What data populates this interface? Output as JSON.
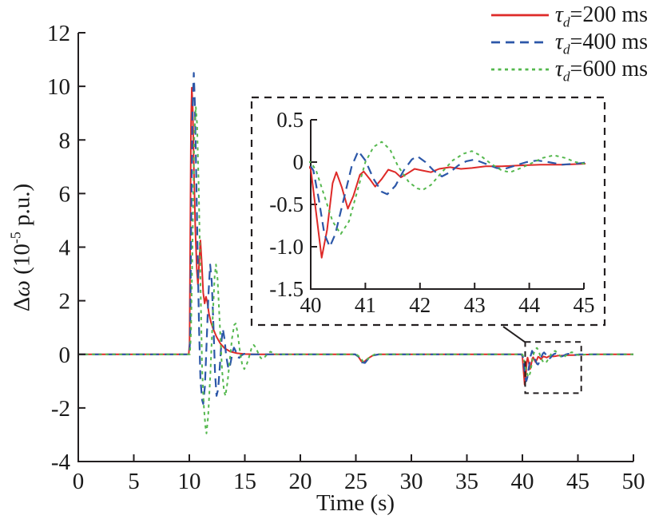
{
  "figure": {
    "background": "#ffffff"
  },
  "axis": {
    "xlabel": "Time (s)",
    "ylabel": {
      "delta": "Δ",
      "omega": "ω",
      "mid": " (10",
      "sup": "-5",
      "post": " p.u.)"
    }
  },
  "legend": {
    "items": [
      {
        "tau": "τ",
        "sub": "d",
        "rest": "=200 ms"
      },
      {
        "tau": "τ",
        "sub": "d",
        "rest": "=400 ms"
      },
      {
        "tau": "τ",
        "sub": "d",
        "rest": "=600 ms"
      }
    ]
  },
  "chart_data": {
    "type": "line",
    "title": "",
    "xlabel": "Time (s)",
    "ylabel": "Δω (10^-5 p.u.)",
    "grid": false,
    "legend_position": "top-right",
    "main": {
      "xlim": [
        0,
        50
      ],
      "ylim": [
        -4,
        12
      ],
      "xticks": [
        [
          0,
          "0"
        ],
        [
          5,
          "5"
        ],
        [
          10,
          "10"
        ],
        [
          15,
          "15"
        ],
        [
          20,
          "20"
        ],
        [
          25,
          "25"
        ],
        [
          30,
          "30"
        ],
        [
          35,
          "35"
        ],
        [
          40,
          "40"
        ],
        [
          45,
          "45"
        ],
        [
          50,
          "50"
        ]
      ],
      "yticks": [
        [
          12,
          "12"
        ],
        [
          10,
          "10"
        ],
        [
          8,
          "8"
        ],
        [
          6,
          "6"
        ],
        [
          4,
          "4"
        ],
        [
          2,
          "2"
        ],
        [
          0,
          "0"
        ],
        [
          -2,
          "-2"
        ],
        [
          -4,
          "-4"
        ]
      ]
    },
    "inset": {
      "xlim": [
        40,
        45
      ],
      "ylim": [
        -1.5,
        0.5
      ],
      "xticks": [
        [
          40,
          "40"
        ],
        [
          41,
          "41"
        ],
        [
          42,
          "42"
        ],
        [
          43,
          "43"
        ],
        [
          44,
          "44"
        ],
        [
          45,
          "45"
        ]
      ],
      "yticks": [
        [
          0.5,
          "0.5"
        ],
        [
          0,
          "0"
        ],
        [
          -0.5,
          "-0.5"
        ],
        [
          -1,
          "-1.0"
        ],
        [
          -1.5,
          "-1.5"
        ]
      ]
    },
    "zoom_region": {
      "t0": 40.25,
      "t1": 45.3,
      "v0": -1.45,
      "v1": 0.46
    },
    "series": [
      {
        "name": "τd=200 ms",
        "color": "#de2a28",
        "dash": "solid",
        "width": 2,
        "points": [
          [
            0,
            0
          ],
          [
            9.95,
            0
          ],
          [
            10.02,
            0.4
          ],
          [
            10.08,
            4.0
          ],
          [
            10.15,
            8.5
          ],
          [
            10.22,
            9.95
          ],
          [
            10.3,
            9.3
          ],
          [
            10.42,
            6.8
          ],
          [
            10.55,
            4.6
          ],
          [
            10.68,
            3.1
          ],
          [
            10.78,
            2.6
          ],
          [
            10.9,
            3.5
          ],
          [
            11.0,
            4.25
          ],
          [
            11.12,
            3.4
          ],
          [
            11.25,
            2.3
          ],
          [
            11.38,
            1.9
          ],
          [
            11.5,
            2.15
          ],
          [
            11.62,
            1.95
          ],
          [
            11.78,
            1.5
          ],
          [
            11.95,
            1.2
          ],
          [
            12.15,
            0.95
          ],
          [
            12.45,
            0.65
          ],
          [
            12.8,
            0.4
          ],
          [
            13.2,
            0.22
          ],
          [
            13.7,
            0.1
          ],
          [
            14.3,
            0.04
          ],
          [
            15.0,
            0.01
          ],
          [
            16.0,
            0
          ],
          [
            24.9,
            0
          ],
          [
            25.2,
            -0.07
          ],
          [
            25.5,
            -0.26
          ],
          [
            25.75,
            -0.28
          ],
          [
            26.1,
            -0.15
          ],
          [
            26.5,
            -0.05
          ],
          [
            27.0,
            0
          ],
          [
            39.9,
            0
          ],
          [
            40.0,
            -0.08
          ],
          [
            40.1,
            -0.6
          ],
          [
            40.2,
            -1.13
          ],
          [
            40.3,
            -0.8
          ],
          [
            40.4,
            -0.25
          ],
          [
            40.47,
            -0.12
          ],
          [
            40.57,
            -0.3
          ],
          [
            40.68,
            -0.55
          ],
          [
            40.78,
            -0.4
          ],
          [
            40.9,
            -0.15
          ],
          [
            40.97,
            -0.11
          ],
          [
            41.08,
            -0.2
          ],
          [
            41.18,
            -0.29
          ],
          [
            41.3,
            -0.2
          ],
          [
            41.42,
            -0.09
          ],
          [
            41.55,
            -0.12
          ],
          [
            41.65,
            -0.18
          ],
          [
            41.78,
            -0.13
          ],
          [
            41.9,
            -0.08
          ],
          [
            42.05,
            -0.1
          ],
          [
            42.2,
            -0.12
          ],
          [
            42.35,
            -0.08
          ],
          [
            42.55,
            -0.06
          ],
          [
            42.75,
            -0.08
          ],
          [
            42.95,
            -0.07
          ],
          [
            43.2,
            -0.05
          ],
          [
            43.5,
            -0.05
          ],
          [
            43.8,
            -0.04
          ],
          [
            44.2,
            -0.03
          ],
          [
            44.6,
            -0.03
          ],
          [
            45.0,
            -0.02
          ],
          [
            45.5,
            -0.01
          ],
          [
            46.5,
            0
          ],
          [
            50,
            0
          ]
        ]
      },
      {
        "name": "τd=400 ms",
        "color": "#2c57a8",
        "dash": "dashed",
        "width": 2.2,
        "points": [
          [
            0,
            0
          ],
          [
            10.0,
            0
          ],
          [
            10.08,
            0.6
          ],
          [
            10.16,
            4.5
          ],
          [
            10.28,
            9.0
          ],
          [
            10.4,
            10.5
          ],
          [
            10.5,
            9.4
          ],
          [
            10.62,
            6.8
          ],
          [
            10.75,
            3.8
          ],
          [
            10.88,
            1.0
          ],
          [
            11.0,
            -0.9
          ],
          [
            11.15,
            -1.7
          ],
          [
            11.25,
            -1.85
          ],
          [
            11.4,
            -1.2
          ],
          [
            11.55,
            0.3
          ],
          [
            11.72,
            2.2
          ],
          [
            11.88,
            3.35
          ],
          [
            12.02,
            2.7
          ],
          [
            12.18,
            1.0
          ],
          [
            12.32,
            -0.7
          ],
          [
            12.45,
            -1.55
          ],
          [
            12.6,
            -1.3
          ],
          [
            12.75,
            -0.45
          ],
          [
            12.9,
            0.5
          ],
          [
            13.02,
            0.95
          ],
          [
            13.18,
            0.55
          ],
          [
            13.32,
            -0.05
          ],
          [
            13.48,
            -0.45
          ],
          [
            13.6,
            -0.55
          ],
          [
            13.75,
            -0.25
          ],
          [
            13.9,
            0.1
          ],
          [
            14.02,
            0.25
          ],
          [
            14.18,
            0.12
          ],
          [
            14.35,
            -0.1
          ],
          [
            14.5,
            -0.13
          ],
          [
            14.7,
            -0.04
          ],
          [
            14.95,
            0.02
          ],
          [
            15.3,
            0
          ],
          [
            24.95,
            0
          ],
          [
            25.25,
            -0.09
          ],
          [
            25.55,
            -0.3
          ],
          [
            25.82,
            -0.32
          ],
          [
            26.15,
            -0.15
          ],
          [
            26.55,
            -0.04
          ],
          [
            27.1,
            0
          ],
          [
            39.95,
            0
          ],
          [
            40.05,
            -0.1
          ],
          [
            40.15,
            -0.45
          ],
          [
            40.25,
            -0.85
          ],
          [
            40.35,
            -1.0
          ],
          [
            40.45,
            -0.85
          ],
          [
            40.6,
            -0.45
          ],
          [
            40.75,
            -0.05
          ],
          [
            40.87,
            0.13
          ],
          [
            41.0,
            0.02
          ],
          [
            41.15,
            -0.2
          ],
          [
            41.3,
            -0.35
          ],
          [
            41.4,
            -0.38
          ],
          [
            41.55,
            -0.28
          ],
          [
            41.7,
            -0.1
          ],
          [
            41.85,
            0.03
          ],
          [
            41.95,
            0.07
          ],
          [
            42.1,
            0
          ],
          [
            42.25,
            -0.1
          ],
          [
            42.4,
            -0.17
          ],
          [
            42.55,
            -0.12
          ],
          [
            42.7,
            -0.04
          ],
          [
            42.85,
            0.01
          ],
          [
            43.0,
            0.03
          ],
          [
            43.2,
            -0.02
          ],
          [
            43.4,
            -0.07
          ],
          [
            43.55,
            -0.08
          ],
          [
            43.75,
            -0.04
          ],
          [
            43.95,
            0
          ],
          [
            44.15,
            0.02
          ],
          [
            44.35,
            0
          ],
          [
            44.6,
            -0.03
          ],
          [
            44.85,
            -0.02
          ],
          [
            45.1,
            0
          ],
          [
            50,
            0
          ]
        ]
      },
      {
        "name": "τd=600 ms",
        "color": "#55b84e",
        "dash": "dense-dashed",
        "width": 2,
        "points": [
          [
            0,
            0
          ],
          [
            10.05,
            0
          ],
          [
            10.15,
            0.8
          ],
          [
            10.3,
            4.5
          ],
          [
            10.45,
            8.2
          ],
          [
            10.58,
            9.25
          ],
          [
            10.7,
            8.6
          ],
          [
            10.85,
            6.2
          ],
          [
            11.0,
            2.8
          ],
          [
            11.15,
            -0.5
          ],
          [
            11.3,
            -1.9
          ],
          [
            11.45,
            -2.7
          ],
          [
            11.55,
            -2.95
          ],
          [
            11.7,
            -2.3
          ],
          [
            11.9,
            -0.7
          ],
          [
            12.1,
            1.3
          ],
          [
            12.28,
            2.9
          ],
          [
            12.4,
            3.35
          ],
          [
            12.55,
            2.8
          ],
          [
            12.75,
            1.1
          ],
          [
            12.95,
            -0.6
          ],
          [
            13.12,
            -1.35
          ],
          [
            13.25,
            -1.55
          ],
          [
            13.45,
            -1.0
          ],
          [
            13.65,
            -0.2
          ],
          [
            13.85,
            0.6
          ],
          [
            14.05,
            1.1
          ],
          [
            14.18,
            1.15
          ],
          [
            14.35,
            0.8
          ],
          [
            14.55,
            0.15
          ],
          [
            14.75,
            -0.35
          ],
          [
            14.95,
            -0.55
          ],
          [
            15.15,
            -0.4
          ],
          [
            15.38,
            -0.1
          ],
          [
            15.6,
            0.22
          ],
          [
            15.8,
            0.35
          ],
          [
            16.0,
            0.25
          ],
          [
            16.2,
            0.05
          ],
          [
            16.42,
            -0.13
          ],
          [
            16.6,
            -0.18
          ],
          [
            16.8,
            -0.1
          ],
          [
            17.05,
            0.02
          ],
          [
            17.3,
            0.1
          ],
          [
            17.55,
            0.05
          ],
          [
            17.85,
            0
          ],
          [
            25.05,
            0
          ],
          [
            25.35,
            -0.1
          ],
          [
            25.65,
            -0.26
          ],
          [
            25.95,
            -0.22
          ],
          [
            26.3,
            -0.09
          ],
          [
            26.7,
            0
          ],
          [
            27.2,
            0
          ],
          [
            40.0,
            0
          ],
          [
            40.1,
            -0.1
          ],
          [
            40.25,
            -0.4
          ],
          [
            40.4,
            -0.7
          ],
          [
            40.55,
            -0.85
          ],
          [
            40.7,
            -0.7
          ],
          [
            40.85,
            -0.35
          ],
          [
            41.0,
            0
          ],
          [
            41.15,
            0.18
          ],
          [
            41.3,
            0.24
          ],
          [
            41.45,
            0.15
          ],
          [
            41.6,
            -0.05
          ],
          [
            41.8,
            -0.24
          ],
          [
            41.95,
            -0.31
          ],
          [
            42.05,
            -0.33
          ],
          [
            42.2,
            -0.27
          ],
          [
            42.4,
            -0.12
          ],
          [
            42.6,
            0.02
          ],
          [
            42.8,
            0.1
          ],
          [
            42.95,
            0.13
          ],
          [
            43.1,
            0.08
          ],
          [
            43.3,
            -0.02
          ],
          [
            43.5,
            -0.1
          ],
          [
            43.65,
            -0.12
          ],
          [
            43.85,
            -0.07
          ],
          [
            44.05,
            -0.01
          ],
          [
            44.25,
            0.05
          ],
          [
            44.45,
            0.08
          ],
          [
            44.65,
            0.05
          ],
          [
            44.85,
            0
          ],
          [
            45.1,
            -0.03
          ],
          [
            45.4,
            -0.02
          ],
          [
            45.8,
            0
          ],
          [
            50,
            0
          ]
        ]
      }
    ]
  }
}
